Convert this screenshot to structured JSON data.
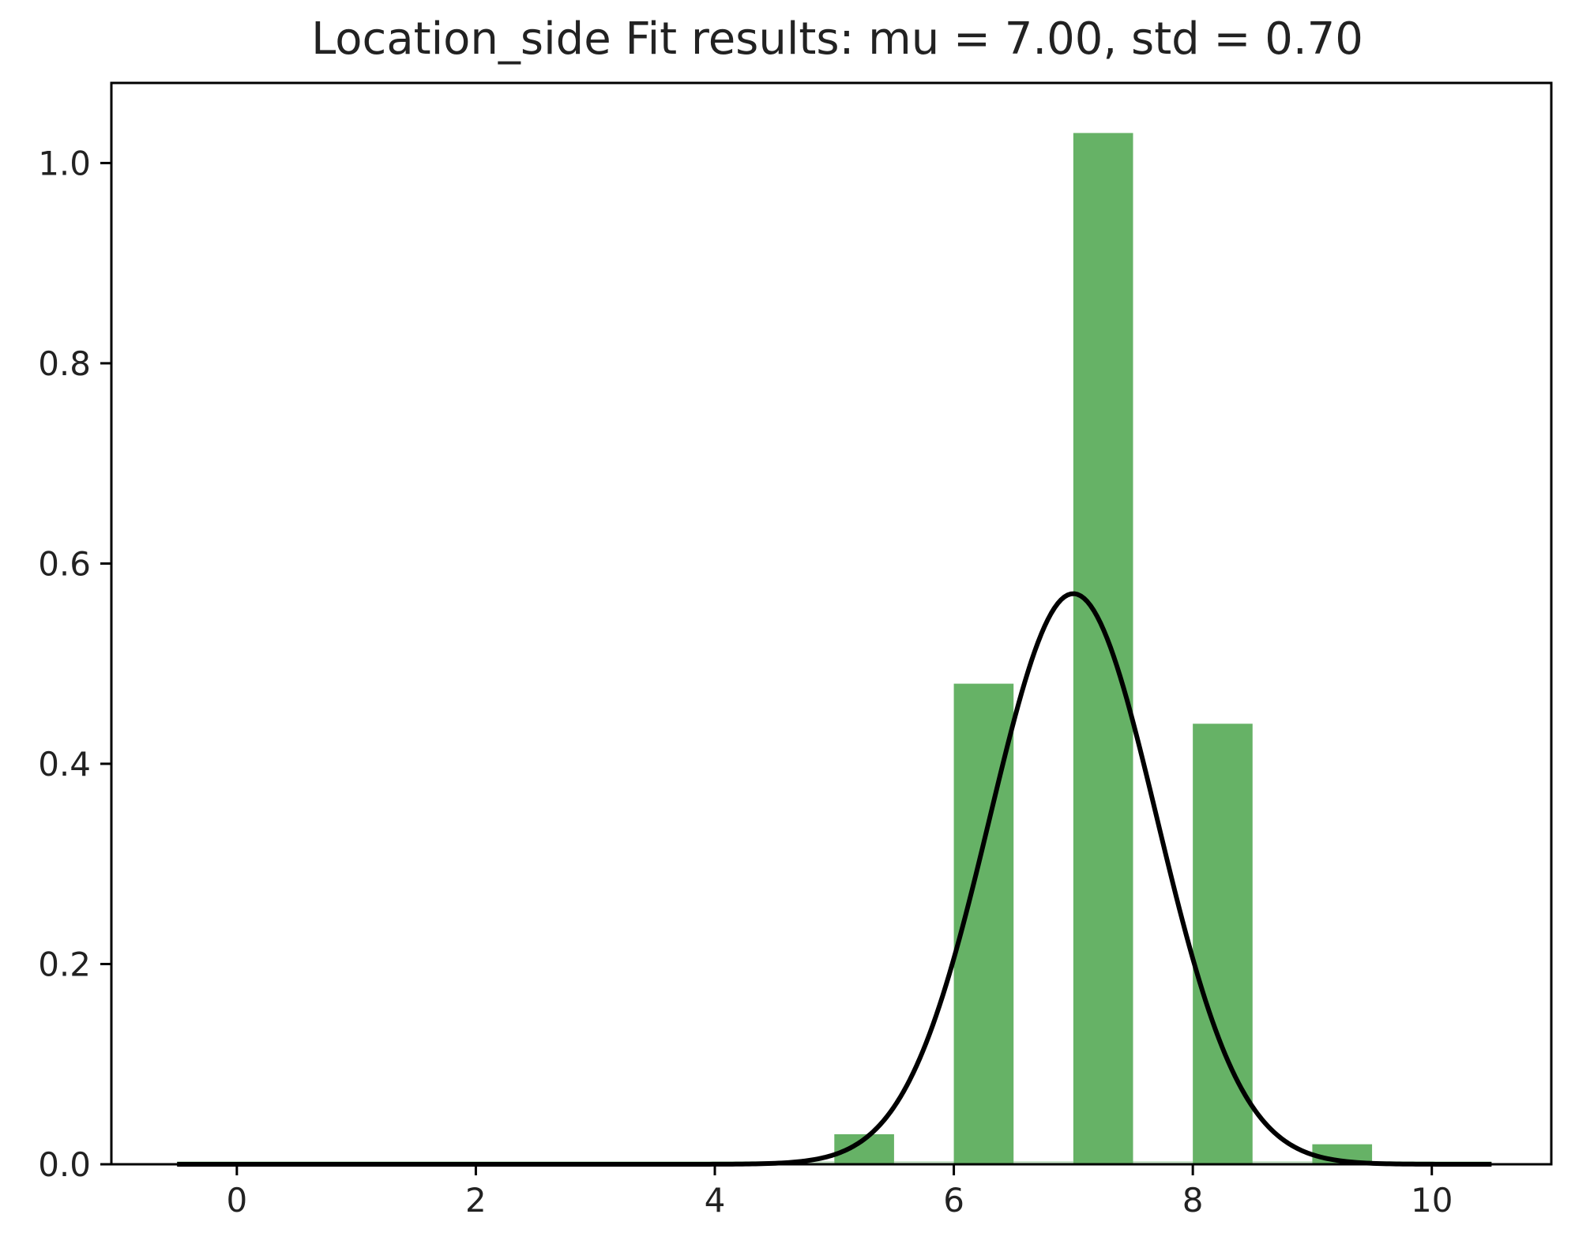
{
  "chart_data": {
    "type": "bar",
    "title": "Location_side Fit results: mu = 7.00,  std = 0.70",
    "xlabel": "",
    "ylabel": "",
    "xlim": [
      -1.05,
      11.0
    ],
    "ylim": [
      0,
      1.08
    ],
    "grid": false,
    "x_ticks": [
      0,
      2,
      4,
      6,
      8,
      10
    ],
    "x_tick_labels": [
      "0",
      "2",
      "4",
      "6",
      "8",
      "10"
    ],
    "y_ticks": [
      0.0,
      0.2,
      0.4,
      0.6,
      0.8,
      1.0
    ],
    "y_tick_labels": [
      "0.0",
      "0.2",
      "0.4",
      "0.6",
      "0.8",
      "1.0"
    ],
    "bar_color": "#66b266",
    "histogram": {
      "bin_edges": [
        -0.5,
        0,
        0.5,
        1,
        1.5,
        2,
        2.5,
        3,
        3.5,
        4,
        4.5,
        5,
        5.5,
        6,
        6.5,
        7,
        7.5,
        8,
        8.5,
        9,
        9.5,
        10,
        10.5
      ],
      "values": [
        0,
        0,
        0,
        0,
        0,
        0,
        0,
        0,
        0,
        0,
        0,
        0.03,
        0,
        0.48,
        0,
        1.03,
        0,
        0.44,
        0,
        0.02,
        0,
        0
      ]
    },
    "fit": {
      "mu": 7.0,
      "std": 0.7,
      "x_range": [
        -0.5,
        10.5
      ],
      "color": "#000000"
    }
  }
}
